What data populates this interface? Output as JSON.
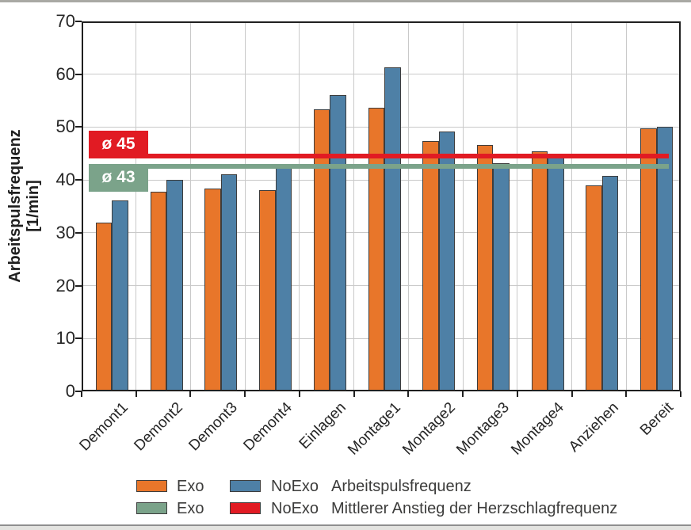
{
  "chart_data": {
    "type": "bar",
    "title": "",
    "ylabel": "Arbeitspulsfrequenz [1/min]",
    "ylabel_line1": "Arbeitspulsfrequenz",
    "ylabel_line2": "[1/min]",
    "ylim": [
      0,
      70
    ],
    "yticks": [
      0,
      10,
      20,
      30,
      40,
      50,
      60,
      70
    ],
    "grid": true,
    "legend_position": "bottom",
    "categories": [
      "Demont1",
      "Demont2",
      "Demont3",
      "Demont4",
      "Einlagen",
      "Montage1",
      "Montage2",
      "Montage3",
      "Montage4",
      "Anziehen",
      "Bereit"
    ],
    "series": [
      {
        "name": "Exo",
        "color": "#e8762a",
        "values": [
          32.0,
          37.7,
          38.4,
          38.0,
          53.3,
          53.7,
          47.4,
          46.6,
          45.4,
          38.9,
          49.7
        ]
      },
      {
        "name": "NoExo",
        "color": "#4e80a6",
        "values": [
          36.1,
          40.0,
          41.1,
          43.0,
          56.1,
          61.3,
          49.2,
          43.2,
          44.2,
          40.8,
          50.0
        ]
      }
    ],
    "mean_lines": [
      {
        "name": "NoExo",
        "label": "ø 45",
        "value": 45,
        "color": "#e11b23",
        "box_attach": "above"
      },
      {
        "name": "Exo",
        "label": "ø 43",
        "value": 43,
        "color": "#7ba38a",
        "box_attach": "below"
      }
    ]
  },
  "legend": {
    "rows": [
      {
        "entry1": {
          "label": "Exo",
          "color": "#e8762a"
        },
        "entry2": {
          "label": "NoExo",
          "color": "#4e80a6"
        },
        "description": "Arbeitspulsfrequenz"
      },
      {
        "entry1": {
          "label": "Exo",
          "color": "#7ba38a"
        },
        "entry2": {
          "label": "NoExo",
          "color": "#e11b23"
        },
        "description": "Mittlerer Anstieg der Herzschlagfrequenz"
      }
    ]
  }
}
